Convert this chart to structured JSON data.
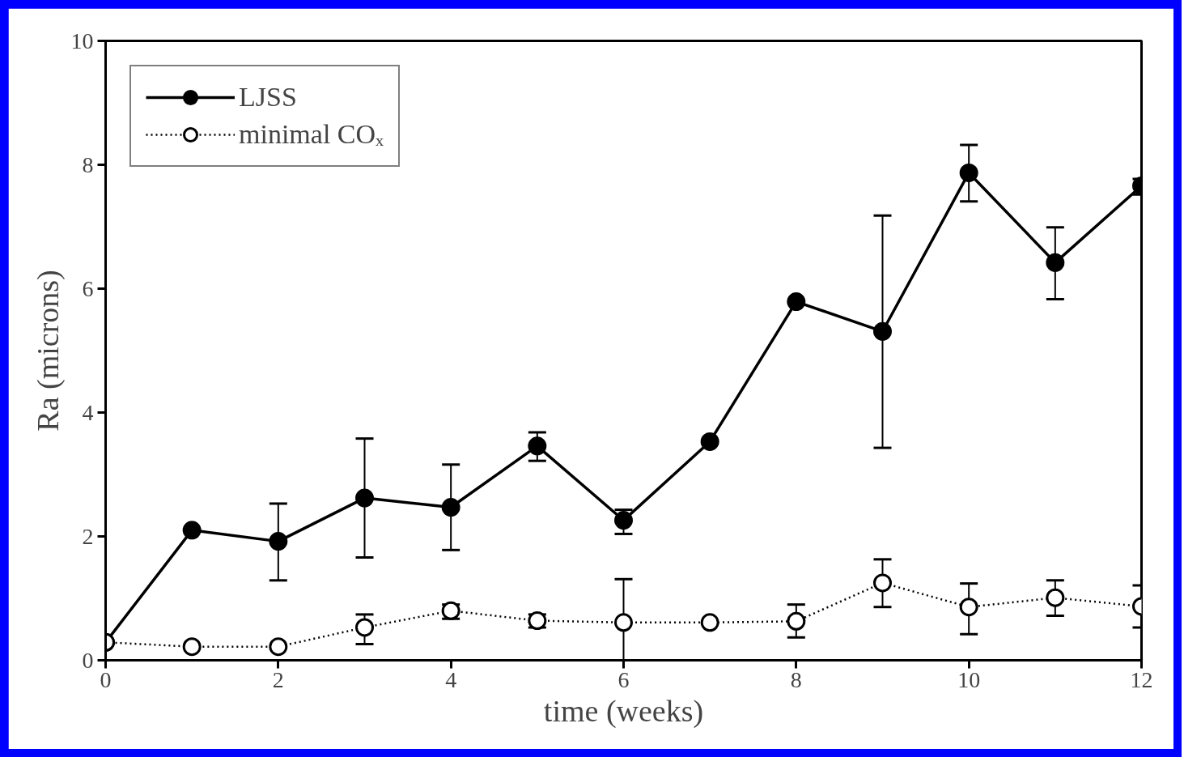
{
  "chart_data": {
    "type": "line",
    "xlabel": "time (weeks)",
    "ylabel": "Ra (microns)",
    "x": [
      0,
      1,
      2,
      3,
      4,
      5,
      6,
      7,
      8,
      9,
      10,
      11,
      12
    ],
    "series": [
      {
        "name": "LJSS",
        "color": "#000000",
        "line_style": "solid",
        "values": [
          0.29,
          2.1,
          1.92,
          2.62,
          2.47,
          3.46,
          2.26,
          3.53,
          5.79,
          5.31,
          7.87,
          6.42,
          7.66
        ],
        "errors": [
          null,
          null,
          [
            1.29,
            2.53
          ],
          [
            1.66,
            3.58
          ],
          [
            1.78,
            3.16
          ],
          [
            3.22,
            3.68
          ],
          [
            2.04,
            2.43
          ],
          null,
          null,
          [
            3.43,
            7.18
          ],
          [
            7.41,
            8.32
          ],
          [
            5.83,
            6.99
          ],
          [
            7.52,
            7.77
          ]
        ]
      },
      {
        "name": "minimal COₓ",
        "color": "#000000",
        "line_style": "dotted",
        "values": [
          0.29,
          0.22,
          0.22,
          0.53,
          0.8,
          0.64,
          0.61,
          0.61,
          0.63,
          1.25,
          0.86,
          1.01,
          0.87
        ],
        "errors": [
          null,
          null,
          null,
          [
            0.26,
            0.74
          ],
          [
            0.67,
            0.9
          ],
          [
            0.53,
            0.74
          ],
          [
            0,
            1.31
          ],
          null,
          [
            0.37,
            0.9
          ],
          [
            0.86,
            1.63
          ],
          [
            0.42,
            1.24
          ],
          [
            0.72,
            1.29
          ],
          [
            0.53,
            1.21
          ]
        ]
      }
    ],
    "xlim": [
      0,
      12
    ],
    "xticks": [
      0,
      2,
      4,
      6,
      8,
      10,
      12
    ],
    "ylim": [
      0,
      10
    ],
    "yticks": [
      0,
      2,
      4,
      6,
      8,
      10
    ],
    "marker": "circle",
    "grid": false,
    "legend": "top left"
  }
}
